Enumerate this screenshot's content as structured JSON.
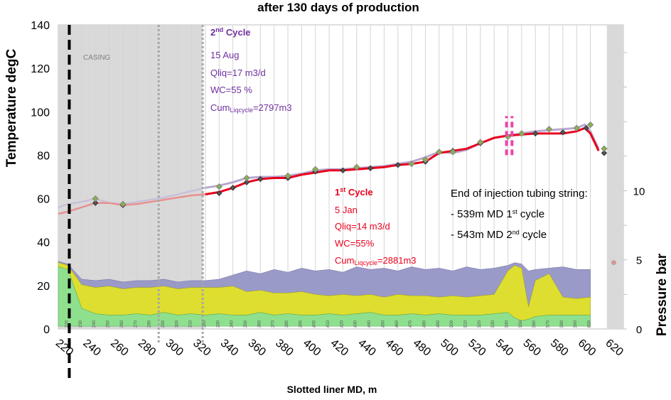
{
  "chart_data": {
    "type": "line",
    "title": "after 130 days of production",
    "xlabel": "Slotted liner MD, m",
    "ylabel_left": "Temperature degC",
    "ylabel_right": "Pressure bar",
    "xlim": [
      213,
      624
    ],
    "ylim_left": [
      0,
      140
    ],
    "ylim_right": [
      0,
      22
    ],
    "x_ticks": [
      220,
      240,
      260,
      280,
      300,
      320,
      340,
      360,
      380,
      400,
      420,
      440,
      460,
      480,
      500,
      520,
      540,
      560,
      580,
      600,
      620
    ],
    "y_ticks_left": [
      0,
      20,
      40,
      60,
      80,
      100,
      120,
      140
    ],
    "y_ticks_right": [
      0,
      5,
      10
    ],
    "inner_x_ticks": [
      210,
      220,
      230,
      240,
      250,
      260,
      270,
      280,
      290,
      300,
      310,
      320,
      330,
      340,
      350,
      360,
      370,
      380,
      390,
      400,
      410,
      420,
      430,
      440,
      450,
      460,
      470,
      480,
      490,
      500,
      510,
      520,
      530,
      540,
      550,
      560,
      570,
      580,
      590,
      600
    ],
    "colors": {
      "cycle1": "#e8001c",
      "cycle1_faded": "#e89090",
      "cycle2": "#b8a8d0",
      "cycle2_faded": "#c8c0d8",
      "marker_fill": "#8ab04a",
      "casing_shade": "#d9d9d9",
      "tubing_marker": "#ee44aa",
      "band_green": "#8ee08e",
      "band_yellow": "#dede30",
      "band_purple": "#9a9ac8",
      "text_cycle1": "#e8001c",
      "text_cycle2": "#7030a0"
    },
    "series": [
      {
        "name": "1st Cycle",
        "x": [
          213,
          220,
          230,
          240,
          250,
          260,
          270,
          280,
          290,
          300,
          310,
          320,
          330,
          340,
          350,
          360,
          370,
          380,
          390,
          400,
          410,
          420,
          430,
          440,
          450,
          460,
          470,
          480,
          490,
          500,
          510,
          520,
          530,
          540,
          550,
          560,
          570,
          580,
          590,
          596,
          600,
          606
        ],
        "y": [
          53,
          54,
          56,
          58,
          58,
          57,
          57.5,
          58.5,
          59.5,
          60.5,
          61.5,
          62,
          63,
          65,
          67.5,
          69,
          69.5,
          69.5,
          71,
          72,
          73,
          73,
          73.5,
          74,
          74.5,
          75.5,
          76,
          77,
          81,
          82,
          83,
          85.5,
          88,
          89,
          89.5,
          90,
          90,
          90,
          91,
          92.5,
          90,
          82
        ]
      },
      {
        "name": "2nd Cycle",
        "x": [
          213,
          220,
          230,
          240,
          250,
          260,
          270,
          280,
          290,
          300,
          310,
          320,
          330,
          340,
          350,
          360,
          370,
          380,
          390,
          400,
          410,
          420,
          430,
          440,
          450,
          460,
          470,
          480,
          490,
          500,
          510,
          520,
          530,
          540,
          550,
          560,
          570,
          580,
          590,
          596,
          600,
          606
        ],
        "y": [
          56,
          57.5,
          58.5,
          60,
          58,
          57.5,
          58.5,
          59.5,
          60.5,
          62,
          63.5,
          65,
          66,
          67.5,
          69.5,
          70,
          70,
          70.5,
          71.5,
          73,
          73.5,
          73.5,
          74,
          74.5,
          75,
          76,
          77,
          79,
          81.5,
          81,
          82.5,
          85.5,
          88,
          89,
          90,
          91,
          91.5,
          92,
          92.5,
          94,
          91,
          83
        ]
      }
    ],
    "markers_cycle1": {
      "x": [
        240,
        260,
        330,
        340,
        350,
        360,
        380,
        400,
        420,
        440,
        460,
        480,
        500,
        520,
        540,
        560,
        580,
        597,
        610
      ],
      "y": [
        58,
        57,
        62.5,
        65,
        67.5,
        69,
        69.5,
        72.5,
        73,
        74,
        75.5,
        77,
        82,
        85.5,
        88.5,
        90,
        90.5,
        92.5,
        81
      ]
    },
    "markers_cycle2": {
      "x": [
        240,
        260,
        330,
        350,
        380,
        400,
        430,
        470,
        480,
        490,
        500,
        520,
        540,
        550,
        570,
        590,
        600,
        610
      ],
      "y": [
        60,
        57.5,
        65.5,
        69.5,
        70.5,
        73.5,
        74.5,
        76,
        78,
        81.5,
        81.5,
        86,
        88.5,
        90,
        92,
        92.5,
        94,
        83
      ]
    },
    "casing_zone": {
      "x_range": [
        213,
        318
      ],
      "label": "CASING"
    },
    "end_shade_x_range": [
      612,
      624
    ],
    "dashed_black_x": 221,
    "dotted_gray_x": [
      286,
      318
    ],
    "tubing_end_x": [
      539,
      543
    ],
    "tubing_end_y": [
      80,
      98
    ],
    "pressure_band": {
      "x": [
        213,
        220,
        230,
        240,
        250,
        260,
        270,
        280,
        290,
        300,
        310,
        320,
        330,
        340,
        350,
        360,
        370,
        380,
        390,
        400,
        410,
        420,
        430,
        440,
        450,
        460,
        470,
        480,
        490,
        500,
        510,
        520,
        530,
        540,
        545,
        550,
        555,
        560,
        570,
        580,
        590,
        600
      ],
      "green_top": [
        4.5,
        4.3,
        1.5,
        1.1,
        1.0,
        1.0,
        1.1,
        1.0,
        1.2,
        1.0,
        1.1,
        1.0,
        1.1,
        1.0,
        1.0,
        1.2,
        1.0,
        1.1,
        1.0,
        1.0,
        1.1,
        1.0,
        1.1,
        1.2,
        1.0,
        1.0,
        1.1,
        1.0,
        1.1,
        1.0,
        1.0,
        1.0,
        1.1,
        1.2,
        0.8,
        0.6,
        0.7,
        0.9,
        1.0,
        1.0,
        1.0,
        1.0
      ],
      "yellow_top": [
        4.8,
        4.6,
        3.2,
        3.0,
        3.1,
        2.9,
        3.0,
        3.0,
        3.1,
        2.9,
        3.0,
        3.0,
        3.0,
        3.1,
        2.7,
        2.8,
        2.6,
        2.6,
        2.7,
        2.5,
        2.4,
        2.5,
        2.4,
        2.5,
        2.3,
        2.5,
        2.4,
        2.4,
        2.3,
        2.4,
        2.3,
        2.4,
        2.5,
        4.2,
        4.6,
        4.4,
        1.6,
        3.5,
        4.0,
        2.3,
        2.2,
        2.3
      ],
      "purple_top": [
        4.9,
        4.7,
        3.6,
        3.5,
        3.6,
        3.4,
        3.5,
        3.5,
        3.6,
        3.4,
        3.5,
        3.5,
        3.6,
        3.9,
        4.2,
        4.0,
        4.3,
        4.1,
        4.4,
        4.2,
        4.3,
        4.1,
        4.5,
        4.3,
        4.4,
        4.2,
        4.5,
        4.3,
        4.4,
        4.2,
        4.5,
        4.3,
        4.4,
        4.6,
        4.8,
        4.7,
        4.2,
        4.3,
        4.4,
        4.5,
        4.3,
        4.3
      ]
    },
    "annotations": {
      "cycle2": {
        "title": "2nd Cycle",
        "date": "15 Aug",
        "qliq": "Qliq=17 m3/d",
        "wc": "WC=55 %",
        "cum_prefix": "Cum",
        "cum_sub": "Liqcycle",
        "cum_value": "=2797m3"
      },
      "cycle1": {
        "title": "1st Cycle",
        "date": "5 Jan",
        "qliq": "Qliq=14 m3/d",
        "wc": "WC=55%",
        "cum_prefix": "Cum",
        "cum_sub": "Liqcycle",
        "cum_value": "=2881m3"
      },
      "tubing": {
        "header": "End of injection tubing string:",
        "line1": "- 539m MD 1st cycle",
        "line2": "- 543m MD 2nd cycle"
      }
    }
  }
}
